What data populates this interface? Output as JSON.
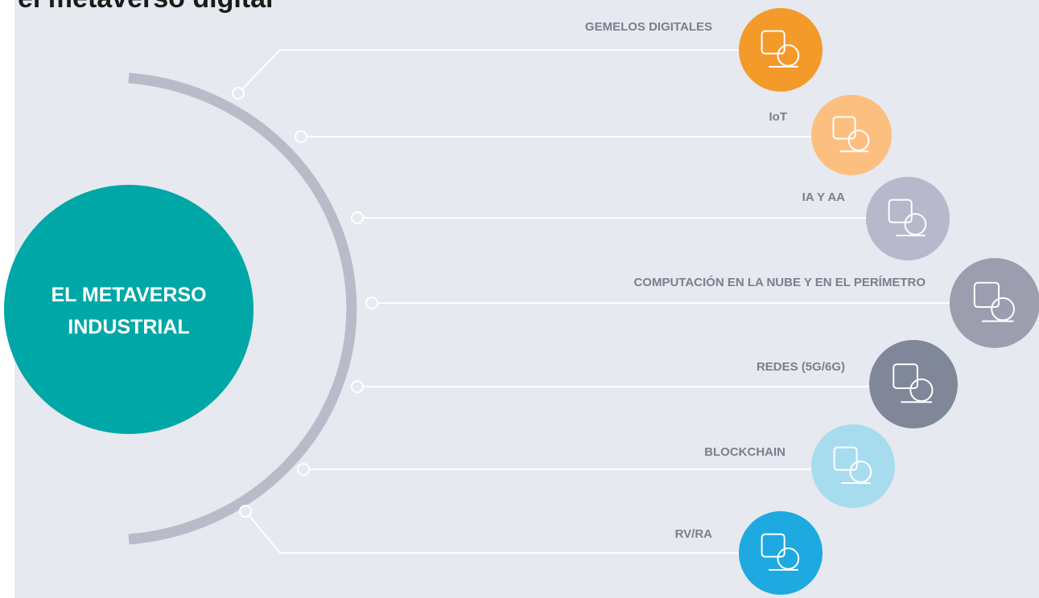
{
  "title": "el metaverso digital",
  "center": {
    "lines": [
      "EL METAVERSO",
      "INDUSTRIAL"
    ]
  },
  "items": [
    {
      "label": "GEMELOS DIGITALES"
    },
    {
      "label": "IoT"
    },
    {
      "label": "IA Y AA"
    },
    {
      "label": "COMPUTACIÓN EN LA NUBE Y EN EL PERÍMETRO"
    },
    {
      "label": "REDES (5G/6G)"
    },
    {
      "label": "BLOCKCHAIN"
    },
    {
      "label": "RV/RA"
    }
  ]
}
